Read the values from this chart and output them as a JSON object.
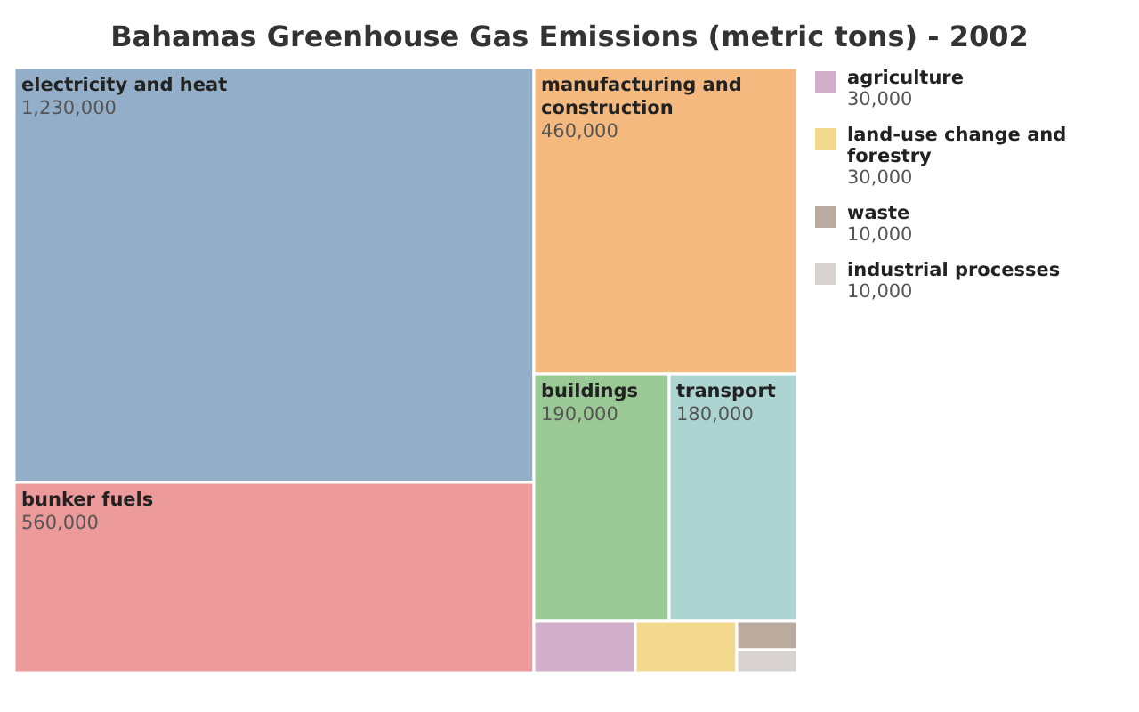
{
  "chart_data": {
    "type": "other",
    "title": "Bahamas Greenhouse Gas Emissions (metric tons) - 2002",
    "categories": [
      "electricity and heat",
      "bunker fuels",
      "manufacturing and construction",
      "buildings",
      "transport",
      "agriculture",
      "land-use change and forestry",
      "waste",
      "industrial processes"
    ],
    "values": [
      1230000,
      560000,
      460000,
      190000,
      180000,
      30000,
      30000,
      10000,
      10000
    ],
    "colors": [
      "#93aec9",
      "#ec9a9a",
      "#f4b97f",
      "#9bc995",
      "#acd5d2",
      "#d1aec9",
      "#f3d98e",
      "#bbaa9e",
      "#d8d3d0"
    ],
    "value_labels": [
      "1,230,000",
      "560,000",
      "460,000",
      "190,000",
      "180,000",
      "30,000",
      "30,000",
      "10,000",
      "10,000"
    ]
  }
}
